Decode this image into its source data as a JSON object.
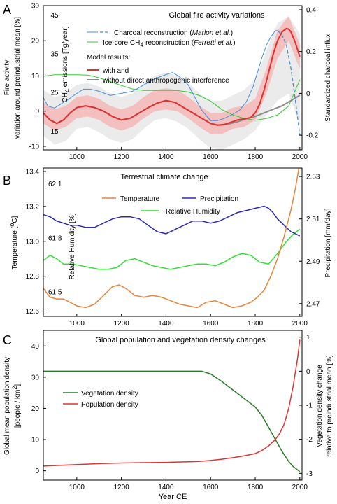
{
  "chart_data": [
    {
      "panel_letter": "A",
      "type": "line",
      "title": "Global fire activity variations",
      "xlim": [
        850,
        2010
      ],
      "xticks": [
        1000,
        1200,
        1400,
        1600,
        1800,
        2000
      ],
      "ylabel_lines": [
        "Fire activity",
        "variation around preindustrial mean [%]"
      ],
      "ylim": [
        -11,
        30
      ],
      "yticks": [
        -10,
        0,
        10,
        20,
        30
      ],
      "y2label": "Standardized charcoal influx",
      "y2lim": [
        -0.27,
        0.42
      ],
      "y2ticks": [
        -0.2,
        0,
        0.2,
        0.4
      ],
      "y2ticklabels": [
        "-0.2",
        "0",
        "0.2",
        "0.4"
      ],
      "y3label": "CH4 emissions [Tg/year]",
      "y3label_parts": [
        "CH",
        "4",
        " emissions [Tg/year]"
      ],
      "y3ticks": [
        45,
        35,
        25,
        15
      ],
      "y3_positions_on_left_axis": [
        27.3,
        16.3,
        5.3,
        -5.7
      ],
      "legend": {
        "charcoal": [
          "Charcoal reconstruction (",
          "Marlon et al.",
          ")"
        ],
        "ch4": [
          "Ice-core  CH",
          "4",
          " reconstruction (",
          "Ferretti et al.",
          ")"
        ],
        "model_header": "Model results:",
        "with": "with and",
        "without": "without direct anthropogenic interference"
      },
      "colors": {
        "charcoal": "#4a8fd8",
        "ch4": "#33cc33",
        "with": "#e03030",
        "with_band": "#f5b0b0",
        "without": "#8c8c8c",
        "without_band": "#e6e6e6"
      },
      "series": [
        {
          "name": "Charcoal reconstruction (Marlon et al.)",
          "axis": "y2",
          "x": [
            850,
            870,
            900,
            930,
            960,
            1000,
            1030,
            1060,
            1100,
            1150,
            1200,
            1250,
            1300,
            1350,
            1400,
            1430,
            1460,
            1500,
            1530,
            1560,
            1600,
            1630,
            1660,
            1700,
            1730,
            1760,
            1790,
            1810,
            1830,
            1850,
            1870,
            1890,
            1900
          ],
          "y": [
            -0.02,
            -0.06,
            -0.07,
            -0.05,
            -0.03,
            0.0,
            0.02,
            0.02,
            0.01,
            -0.01,
            0.0,
            0.01,
            0.04,
            0.07,
            0.09,
            0.1,
            0.08,
            0.04,
            -0.02,
            -0.08,
            -0.13,
            -0.13,
            -0.12,
            -0.1,
            -0.08,
            -0.04,
            0.03,
            0.1,
            0.17,
            0.23,
            0.27,
            0.3,
            0.3
          ]
        },
        {
          "name": "Charcoal reconstruction (Marlon et al.) projected",
          "axis": "y2",
          "x": [
            1900,
            1920,
            1940,
            1960,
            1980,
            2000
          ],
          "y": [
            0.3,
            0.28,
            0.23,
            0.12,
            -0.03,
            -0.2
          ]
        },
        {
          "name": "Ice-core CH4 reconstruction (Ferretti et al.)",
          "axis": "y3",
          "x": [
            850,
            900,
            950,
            1000,
            1050,
            1100,
            1150,
            1200,
            1250,
            1300,
            1350,
            1400,
            1450,
            1500,
            1550,
            1600,
            1650,
            1700,
            1750,
            1800,
            1850,
            1900,
            1950,
            2000
          ],
          "y": [
            29.2,
            29.6,
            29.6,
            29.6,
            29.5,
            28.8,
            27.8,
            26.8,
            25.9,
            25.5,
            25.5,
            25.5,
            25.5,
            25.1,
            24.2,
            22.8,
            20.6,
            19.2,
            18.3,
            17.8,
            18.3,
            19.2,
            21.5,
            28.3
          ]
        },
        {
          "name": "Model results: with direct anthropogenic interference",
          "axis": "y",
          "x": [
            850,
            880,
            910,
            940,
            970,
            1000,
            1040,
            1080,
            1120,
            1160,
            1200,
            1240,
            1280,
            1320,
            1360,
            1400,
            1440,
            1480,
            1520,
            1560,
            1600,
            1630,
            1660,
            1690,
            1720,
            1750,
            1780,
            1800,
            1820,
            1840,
            1860,
            1880,
            1900,
            1920,
            1940,
            1950,
            1960,
            1980,
            2000
          ],
          "y": [
            -0.5,
            -2.5,
            -3.5,
            -2.5,
            -0.5,
            1.0,
            1.5,
            1.0,
            0.0,
            -1.5,
            -2.5,
            -2.0,
            -0.5,
            1.0,
            2.3,
            3.0,
            2.5,
            1.0,
            -0.5,
            -2.0,
            -3.5,
            -4.0,
            -3.8,
            -3.2,
            -2.5,
            -2.2,
            -1.8,
            -0.5,
            2.0,
            6.0,
            11.0,
            16.0,
            20.0,
            22.5,
            23.5,
            23.3,
            22.5,
            19.5,
            15.5
          ]
        },
        {
          "name": "Model results: without direct anthropogenic interference",
          "axis": "y",
          "x": [
            850,
            880,
            910,
            940,
            970,
            1000,
            1040,
            1080,
            1120,
            1160,
            1200,
            1240,
            1280,
            1320,
            1360,
            1400,
            1440,
            1480,
            1520,
            1560,
            1600,
            1640,
            1680,
            1720,
            1760,
            1800,
            1840,
            1880,
            1920,
            1960,
            2000
          ],
          "y": [
            -0.5,
            -2.5,
            -3.5,
            -2.5,
            -0.5,
            1.0,
            1.5,
            1.0,
            0.0,
            -1.5,
            -2.5,
            -2.0,
            -0.5,
            1.0,
            2.3,
            3.0,
            2.5,
            1.0,
            -0.5,
            -2.0,
            -3.5,
            -4.0,
            -3.7,
            -3.0,
            -2.2,
            -1.5,
            -0.5,
            0.5,
            1.5,
            3.0,
            4.5
          ]
        }
      ],
      "bands": [
        {
          "name": "with (uncertainty range)",
          "x": [
            850,
            900,
            950,
            1000,
            1050,
            1100,
            1150,
            1200,
            1250,
            1300,
            1350,
            1400,
            1450,
            1500,
            1550,
            1600,
            1650,
            1700,
            1750,
            1800,
            1850,
            1900,
            1950,
            2000
          ],
          "lower": [
            -3.5,
            -5.5,
            -4.5,
            -2.0,
            -1.5,
            -2.5,
            -4.5,
            -5.5,
            -4.5,
            -2.0,
            0.0,
            0.5,
            0.0,
            -2.0,
            -4.5,
            -6.5,
            -6.5,
            -5.0,
            -4.5,
            -2.5,
            5.0,
            15.0,
            20.0,
            12.0
          ],
          "upper": [
            2.5,
            0.5,
            1.5,
            4.0,
            4.5,
            3.5,
            1.5,
            0.5,
            1.5,
            4.0,
            6.0,
            6.5,
            6.0,
            4.0,
            1.5,
            -0.5,
            -0.5,
            1.0,
            1.5,
            3.5,
            12.0,
            23.0,
            27.0,
            19.0
          ]
        },
        {
          "name": "without (uncertainty range)",
          "x": [
            850,
            900,
            950,
            1000,
            1050,
            1100,
            1150,
            1200,
            1250,
            1300,
            1350,
            1400,
            1450,
            1500,
            1550,
            1600,
            1650,
            1700,
            1750,
            1800,
            1850,
            1900,
            1950,
            2000
          ],
          "lower": [
            -7.0,
            -9.5,
            -8.5,
            -5.0,
            -4.5,
            -6.0,
            -8.0,
            -9.0,
            -8.0,
            -5.0,
            -2.5,
            -2.0,
            -3.0,
            -5.0,
            -8.0,
            -10.5,
            -11.0,
            -9.5,
            -8.0,
            -5.5,
            -1.0,
            3.0,
            5.0,
            -4.0
          ],
          "upper": [
            6.0,
            4.0,
            5.0,
            7.5,
            8.0,
            7.0,
            5.0,
            4.0,
            5.0,
            8.0,
            10.0,
            11.0,
            10.0,
            8.0,
            5.0,
            3.0,
            3.0,
            4.5,
            6.0,
            9.0,
            17.0,
            25.0,
            27.0,
            22.0
          ]
        }
      ]
    },
    {
      "panel_letter": "B",
      "type": "line",
      "title": "Terrestrial climate change",
      "xlim": [
        850,
        2010
      ],
      "xticks": [
        1000,
        1200,
        1400,
        1600,
        1800,
        2000
      ],
      "ylabel": "Temperature [°C]",
      "ylabel_parts": [
        "Temperature [",
        "o",
        "C]"
      ],
      "ylim": [
        12.57,
        13.42
      ],
      "yticks": [
        12.6,
        12.8,
        13.0,
        13.2,
        13.4
      ],
      "yticklabels": [
        "12.6",
        "12.8",
        "13.0",
        "13.2",
        "13.4"
      ],
      "y2label": "Precipitation [mm/day]",
      "y2lim": [
        2.464,
        2.534
      ],
      "y2ticks": [
        2.47,
        2.49,
        2.51,
        2.53
      ],
      "y2ticklabels": [
        "2.47",
        "2.49",
        "2.51",
        "2.53"
      ],
      "y3label": "Relative Humidity [%]",
      "y3ticks": [
        62.1,
        61.8,
        61.5
      ],
      "y3ticklabels": [
        "62.1",
        "61.8",
        "61.5"
      ],
      "y3_positions_on_left_axis": [
        13.33,
        13.02,
        12.71
      ],
      "legend": {
        "temperature": "Temperature",
        "precipitation": "Precipitation",
        "humidity": "Relative Humidity"
      },
      "colors": {
        "temperature": "#e8843a",
        "precipitation": "#2a2ab5",
        "humidity": "#33dd33"
      },
      "series": [
        {
          "name": "Temperature",
          "axis": "y",
          "x": [
            850,
            880,
            910,
            940,
            970,
            1000,
            1040,
            1080,
            1120,
            1160,
            1190,
            1220,
            1260,
            1300,
            1340,
            1380,
            1420,
            1460,
            1500,
            1540,
            1580,
            1620,
            1660,
            1700,
            1740,
            1780,
            1810,
            1840,
            1870,
            1900,
            1930,
            1960,
            1980,
            2000
          ],
          "y": [
            12.73,
            12.68,
            12.67,
            12.67,
            12.65,
            12.63,
            12.62,
            12.64,
            12.69,
            12.74,
            12.75,
            12.73,
            12.69,
            12.68,
            12.69,
            12.68,
            12.66,
            12.64,
            12.63,
            12.62,
            12.65,
            12.66,
            12.64,
            12.62,
            12.63,
            12.65,
            12.68,
            12.72,
            12.8,
            12.9,
            13.03,
            13.18,
            13.3,
            13.45
          ]
        },
        {
          "name": "Precipitation",
          "axis": "y2",
          "x": [
            850,
            880,
            910,
            940,
            970,
            1000,
            1040,
            1080,
            1120,
            1160,
            1200,
            1240,
            1280,
            1320,
            1360,
            1400,
            1440,
            1480,
            1520,
            1560,
            1600,
            1640,
            1680,
            1720,
            1760,
            1800,
            1840,
            1860,
            1880,
            1900,
            1930,
            1960,
            2000
          ],
          "y": [
            2.512,
            2.511,
            2.509,
            2.508,
            2.507,
            2.507,
            2.506,
            2.506,
            2.508,
            2.51,
            2.511,
            2.511,
            2.51,
            2.507,
            2.504,
            2.503,
            2.505,
            2.507,
            2.509,
            2.509,
            2.508,
            2.509,
            2.511,
            2.513,
            2.514,
            2.515,
            2.516,
            2.515,
            2.513,
            2.51,
            2.507,
            2.504,
            2.502
          ]
        },
        {
          "name": "Relative Humidity",
          "axis": "y",
          "x": [
            850,
            880,
            910,
            940,
            980,
            1020,
            1060,
            1100,
            1140,
            1180,
            1220,
            1260,
            1300,
            1340,
            1380,
            1420,
            1460,
            1500,
            1540,
            1580,
            1620,
            1660,
            1700,
            1740,
            1780,
            1820,
            1860,
            1900,
            1940,
            1970,
            2000
          ],
          "y": [
            12.89,
            12.92,
            12.9,
            12.87,
            12.87,
            12.86,
            12.85,
            12.84,
            12.84,
            12.85,
            12.89,
            12.9,
            12.88,
            12.86,
            12.85,
            12.84,
            12.85,
            12.86,
            12.87,
            12.87,
            12.86,
            12.88,
            12.91,
            12.93,
            12.92,
            12.88,
            12.87,
            12.93,
            13.0,
            13.04,
            13.07
          ]
        }
      ]
    },
    {
      "panel_letter": "C",
      "type": "line",
      "title": "Global population and vegetation density changes",
      "xlabel": "Year CE",
      "xlim": [
        850,
        2010
      ],
      "xticks": [
        1000,
        1200,
        1400,
        1600,
        1800,
        2000
      ],
      "ylabel_lines": [
        "Global mean population density",
        "[people / km²]"
      ],
      "ylabel_line2_parts": [
        "[people / km",
        "2",
        "]"
      ],
      "ylim": [
        -3,
        45
      ],
      "yticks": [
        0,
        10,
        20,
        30,
        40
      ],
      "y2label_lines": [
        "Vegetation density change",
        "relative to preindustrial mean [%]"
      ],
      "y2lim": [
        -3.2,
        1.2
      ],
      "y2ticks": [
        -3,
        -2,
        -1,
        0,
        1
      ],
      "y2ticklabels": [
        "-3",
        "-2",
        "-1",
        "0",
        "1"
      ],
      "legend": {
        "vegetation": "Vegetation density",
        "population": "Population density"
      },
      "colors": {
        "vegetation": "#2a7a2a",
        "population": "#dd3333"
      },
      "series": [
        {
          "name": "Vegetation density",
          "axis": "y2",
          "x": [
            850,
            1000,
            1200,
            1400,
            1500,
            1560,
            1600,
            1650,
            1700,
            1750,
            1800,
            1830,
            1860,
            1890,
            1920,
            1950,
            1970,
            2000
          ],
          "y": [
            0.0,
            0.0,
            0.0,
            0.0,
            0.0,
            0.0,
            -0.08,
            -0.3,
            -0.55,
            -0.8,
            -1.05,
            -1.3,
            -1.65,
            -2.0,
            -2.35,
            -2.65,
            -2.8,
            -2.95
          ]
        },
        {
          "name": "Population density",
          "axis": "y",
          "x": [
            850,
            1000,
            1100,
            1200,
            1300,
            1400,
            1500,
            1550,
            1600,
            1650,
            1700,
            1750,
            1800,
            1830,
            1860,
            1890,
            1910,
            1930,
            1950,
            1970,
            1990,
            2000
          ],
          "y": [
            1.5,
            2.0,
            2.3,
            2.5,
            2.6,
            2.7,
            2.9,
            3.0,
            3.3,
            3.7,
            4.2,
            4.8,
            5.5,
            6.5,
            8.0,
            10.0,
            12.0,
            15.0,
            20.0,
            27.0,
            36.0,
            42.0
          ]
        }
      ]
    }
  ]
}
